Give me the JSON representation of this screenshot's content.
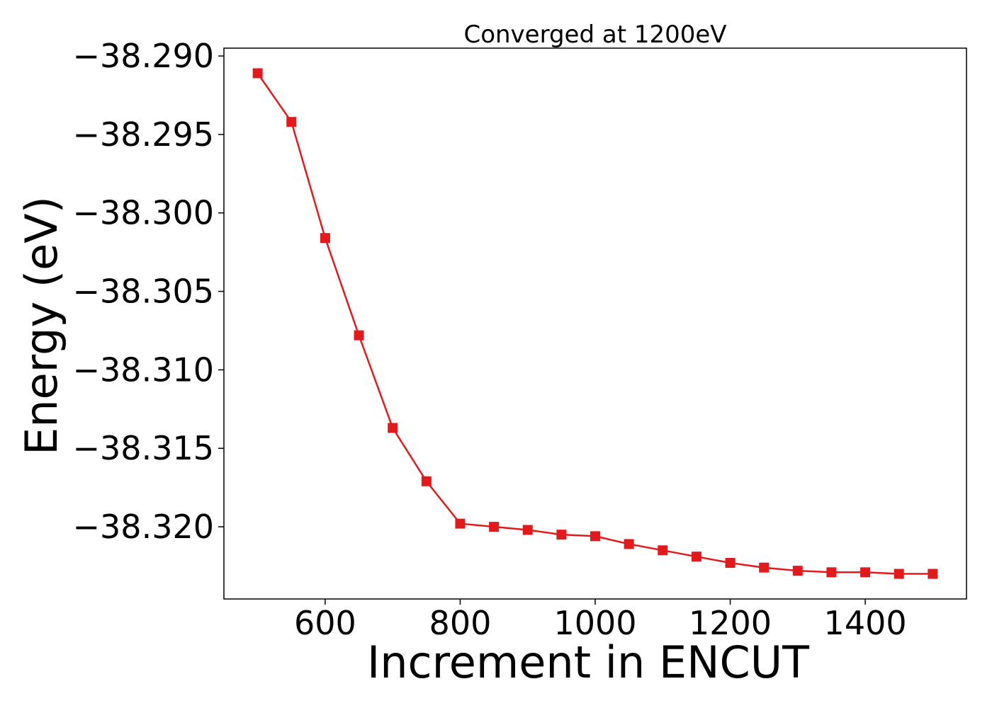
{
  "chart_data": {
    "type": "line",
    "title": "Converged at 1200eV",
    "xlabel": "Increment in ENCUT",
    "ylabel": "Energy (eV)",
    "xlim": [
      450,
      1550
    ],
    "ylim": [
      -38.3246,
      -38.2895
    ],
    "xticks": [
      600,
      800,
      1000,
      1200,
      1400
    ],
    "yticks": [
      -38.29,
      -38.295,
      -38.3,
      -38.305,
      -38.31,
      -38.315,
      -38.32
    ],
    "ytick_labels": [
      "−38.290",
      "−38.295",
      "−38.300",
      "−38.305",
      "−38.310",
      "−38.315",
      "−38.320"
    ],
    "grid": false,
    "series": [
      {
        "color": "#e31a1c",
        "marker": "square",
        "x": [
          500,
          550,
          600,
          650,
          700,
          750,
          800,
          850,
          900,
          950,
          1000,
          1050,
          1100,
          1150,
          1200,
          1250,
          1300,
          1350,
          1400,
          1450,
          1500
        ],
        "y": [
          -38.2911,
          -38.2942,
          -38.3016,
          -38.3078,
          -38.3137,
          -38.3171,
          -38.3198,
          -38.32,
          -38.3202,
          -38.3205,
          -38.3206,
          -38.3211,
          -38.3215,
          -38.3219,
          -38.3223,
          -38.3226,
          -38.3228,
          -38.3229,
          -38.3229,
          -38.323,
          -38.323
        ]
      }
    ]
  }
}
